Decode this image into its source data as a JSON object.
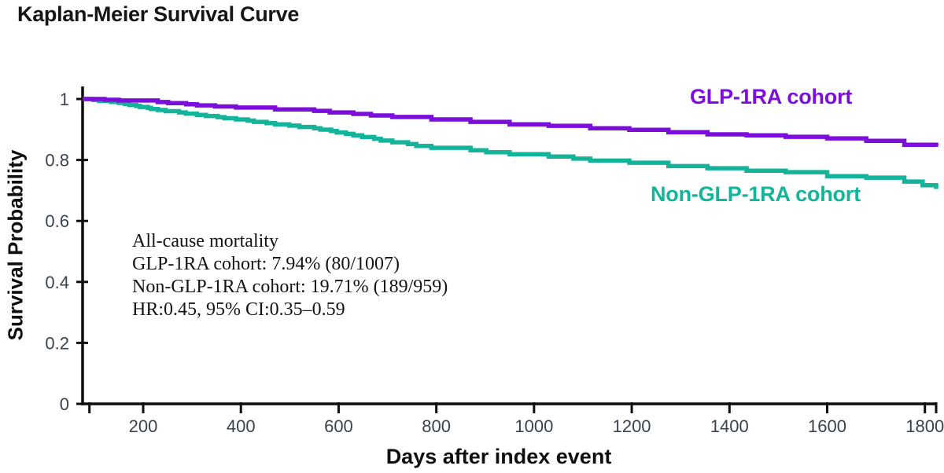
{
  "chart_data": {
    "type": "line",
    "variant": "kaplan_meier_step",
    "title": "Kaplan-Meier Survival Curve",
    "xlabel": "Days after index event",
    "ylabel": "Survival Probability",
    "xlim": [
      76,
      1823
    ],
    "ylim": [
      0,
      1
    ],
    "x_ticks": [
      200,
      400,
      600,
      800,
      1000,
      1200,
      1400,
      1600,
      1800
    ],
    "x_edge_ticks": [
      90,
      1823
    ],
    "y_ticks": [
      0,
      0.2,
      0.4,
      0.6,
      0.8,
      1
    ],
    "grid": false,
    "legend_position": "inline-curve-labels",
    "axis_color": "#0d0d0d",
    "tick_label_color": "#3a424e",
    "series": [
      {
        "name": "GLP-1RA cohort",
        "color": "#7C0EDC",
        "x": [
          76,
          150,
          230,
          310,
          390,
          470,
          550,
          630,
          710,
          790,
          870,
          950,
          1030,
          1115,
          1195,
          1275,
          1355,
          1435,
          1515,
          1600,
          1680,
          1758,
          1823
        ],
        "y": [
          1.0,
          0.995,
          0.99,
          0.979,
          0.972,
          0.966,
          0.961,
          0.951,
          0.941,
          0.933,
          0.925,
          0.917,
          0.912,
          0.904,
          0.899,
          0.891,
          0.884,
          0.881,
          0.876,
          0.871,
          0.863,
          0.85,
          0.843
        ]
      },
      {
        "name": "Non-GLP-1RA cohort",
        "color": "#14B49B",
        "x": [
          76,
          150,
          230,
          310,
          390,
          470,
          550,
          630,
          710,
          790,
          870,
          950,
          1030,
          1115,
          1195,
          1275,
          1355,
          1435,
          1515,
          1600,
          1680,
          1758,
          1823
        ],
        "y": [
          1.0,
          0.987,
          0.964,
          0.948,
          0.933,
          0.917,
          0.904,
          0.881,
          0.858,
          0.84,
          0.832,
          0.819,
          0.811,
          0.798,
          0.791,
          0.78,
          0.773,
          0.765,
          0.76,
          0.747,
          0.742,
          0.729,
          0.705
        ]
      }
    ],
    "annotation": {
      "lines": [
        "All-cause mortality",
        "GLP-1RA cohort: 7.94% (80/1007)",
        "Non-GLP-1RA cohort: 19.71% (189/959)",
        "HR:0.45, 95% CI:0.35–0.59"
      ]
    }
  }
}
